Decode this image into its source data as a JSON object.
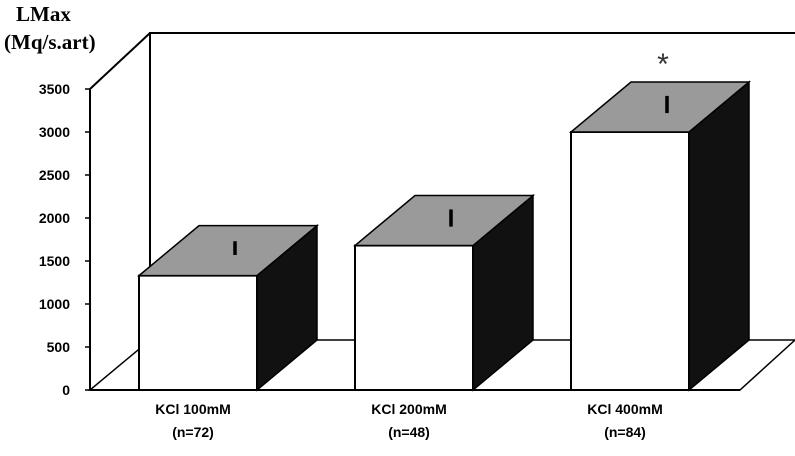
{
  "chart_data": {
    "type": "bar",
    "title": "",
    "ylabel_lines": [
      "LMax",
      "(Mq/s.art)"
    ],
    "xlabel": "",
    "ylim": [
      0,
      3500
    ],
    "yticks": [
      0,
      500,
      1000,
      1500,
      2000,
      2500,
      3000,
      3500
    ],
    "categories": [
      {
        "line1": "KCl 100mM",
        "line2": "(n=72)"
      },
      {
        "line1": "KCl 200mM",
        "line2": "(n=48)"
      },
      {
        "line1": "KCl 400mM",
        "line2": "(n=84)"
      }
    ],
    "values": [
      1330,
      1680,
      3000
    ],
    "error": [
      80,
      100,
      100
    ],
    "annotations": [
      "",
      "",
      "*"
    ],
    "grid": false,
    "style": "3d",
    "colors": {
      "front": "#ffffff",
      "side": "#111111",
      "top": "#9a9a9a",
      "frame": "#000000"
    }
  }
}
